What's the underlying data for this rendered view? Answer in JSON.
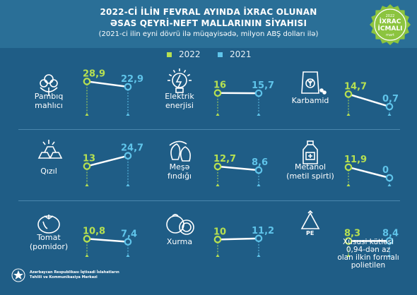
{
  "header": {
    "title_line1": "2022-Cİ İLİN FEVRAL AYINDA İXRAC OLUNAN",
    "title_line2": "ƏSAS QEYRİ-NEFT MALLARININ SİYAHISI",
    "subtitle": "(2021-ci ilin eyni dövrü ilə müqayisədə, milyon ABŞ dolları ilə)"
  },
  "badge": {
    "year": "2022",
    "line1": "İXRAC",
    "line2": "İCMALI",
    "month": "mart"
  },
  "legend": [
    {
      "label": "2022",
      "color": "#b6e051"
    },
    {
      "label": "2021",
      "color": "#5fc4ea"
    }
  ],
  "colors": {
    "value_2022": "#b6e051",
    "value_2021": "#5fc4ea",
    "background": "#1f5d86",
    "line": "#ffffff"
  },
  "chart_data": {
    "type": "line",
    "title": "2022-Cİ İLİN FEVRAL AYINDA İXRAC OLUNAN ƏSAS QEYRİ-NEFT MALLARININ SİYAHISI",
    "subtitle": "(2021-ci ilin eyni dövrü ilə müqayisədə, milyon ABŞ dolları ilə)",
    "legend_position": "top",
    "series_names": [
      "2022",
      "2021"
    ],
    "items": [
      {
        "name": "Pambıq\nmahlıcı",
        "icon": "cotton-icon",
        "v2022": 28.9,
        "v2021": 22.9,
        "label_2022": "28,9",
        "label_2021": "22,9"
      },
      {
        "name": "Elektrik\nenerjisi",
        "icon": "lightbulb-icon",
        "v2022": 16,
        "v2021": 15.7,
        "label_2022": "16",
        "label_2021": "15,7"
      },
      {
        "name": "Karbamid",
        "icon": "fertilizer-bag-icon",
        "v2022": 14.7,
        "v2021": 0.7,
        "label_2022": "14,7",
        "label_2021": "0,7"
      },
      {
        "name": "Qızıl",
        "icon": "gold-bars-icon",
        "v2022": 13,
        "v2021": 24.7,
        "label_2022": "13",
        "label_2021": "24,7"
      },
      {
        "name": "Meşə\nfındığı",
        "icon": "hazelnut-icon",
        "v2022": 12.7,
        "v2021": 8.6,
        "label_2022": "12,7",
        "label_2021": "8,6"
      },
      {
        "name": "Metanol\n(metil spirti)",
        "icon": "bottle-icon",
        "v2022": 11.9,
        "v2021": 0,
        "label_2022": "11,9",
        "label_2021": "0"
      },
      {
        "name": "Tomat\n(pomidor)",
        "icon": "tomato-icon",
        "v2022": 10.8,
        "v2021": 7.4,
        "label_2022": "10,8",
        "label_2021": "7,4"
      },
      {
        "name": "Xurma",
        "icon": "persimmon-icon",
        "v2022": 10,
        "v2021": 11.2,
        "label_2022": "10",
        "label_2021": "11,2"
      },
      {
        "name": "Xüsusi kütləsi\n0,94-dən az\nolan ilkin formalı\npolietilen",
        "icon": "pe-recycle-icon",
        "v2022": 8.3,
        "v2021": 8.4,
        "label_2022": "8,3",
        "label_2021": "8,4",
        "icon_text": "PE"
      }
    ]
  },
  "footer": {
    "org_line1": "Azərbaycan Respublikası İqtisadi İslahatların",
    "org_line2": "Təhlili və Kommunikasiya Mərkəzi"
  }
}
